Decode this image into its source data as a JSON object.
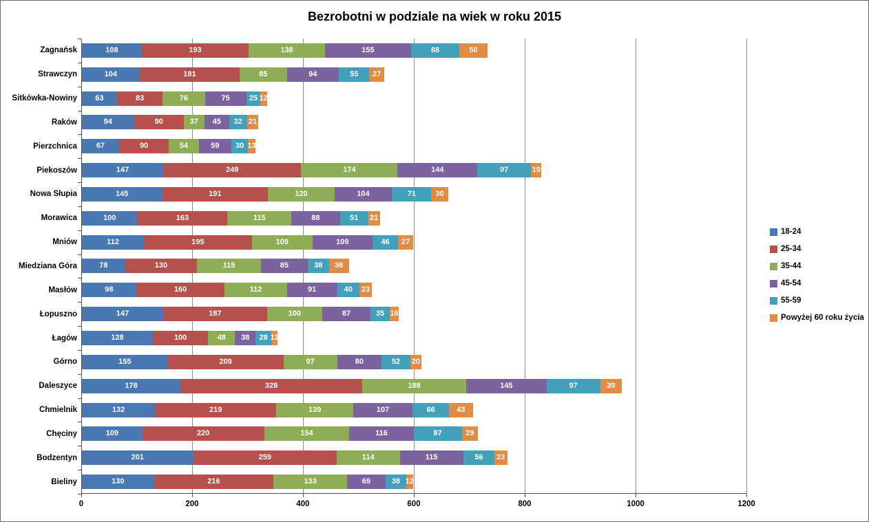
{
  "title": "Bezrobotni w podziale na wiek w roku 2015",
  "chart_data": {
    "type": "bar",
    "orientation": "horizontal",
    "stacked": true,
    "title": "Bezrobotni w podziale na wiek w roku 2015",
    "categories": [
      "Zagnańsk",
      "Strawczyn",
      "Sitkówka-Nowiny",
      "Raków",
      "Pierzchnica",
      "Piekoszów",
      "Nowa Słupia",
      "Morawica",
      "Mniów",
      "Miedziana Góra",
      "Masłów",
      "Łopuszno",
      "Łagów",
      "Górno",
      "Daleszyce",
      "Chmielnik",
      "Chęciny",
      "Bodzentyn",
      "Bieliny"
    ],
    "series": [
      {
        "name": "18-24",
        "color": "#4A78B2",
        "values": [
          108,
          104,
          63,
          94,
          67,
          147,
          145,
          100,
          112,
          78,
          98,
          147,
          128,
          155,
          178,
          132,
          109,
          201,
          130
        ]
      },
      {
        "name": "25-34",
        "color": "#B5504C",
        "values": [
          193,
          181,
          83,
          90,
          90,
          249,
          191,
          163,
          195,
          130,
          160,
          187,
          100,
          209,
          328,
          219,
          220,
          259,
          216
        ]
      },
      {
        "name": "35-44",
        "color": "#8FAD55",
        "values": [
          138,
          85,
          76,
          37,
          54,
          174,
          120,
          115,
          109,
          115,
          112,
          100,
          48,
          97,
          188,
          139,
          154,
          114,
          133
        ]
      },
      {
        "name": "45-54",
        "color": "#7B639F",
        "values": [
          155,
          94,
          75,
          45,
          59,
          144,
          104,
          88,
          109,
          85,
          91,
          87,
          38,
          80,
          145,
          107,
          116,
          115,
          69
        ]
      },
      {
        "name": "55-59",
        "color": "#42A0BB",
        "values": [
          88,
          55,
          25,
          32,
          30,
          97,
          71,
          51,
          46,
          38,
          40,
          35,
          28,
          52,
          97,
          66,
          87,
          56,
          38
        ]
      },
      {
        "name": "Powyżej 60 roku życia",
        "color": "#E08C45",
        "values": [
          50,
          27,
          12,
          21,
          13,
          19,
          30,
          21,
          27,
          36,
          23,
          16,
          11,
          20,
          39,
          43,
          29,
          23,
          12
        ]
      }
    ],
    "xlim": [
      0,
      1200
    ],
    "x_ticks": [
      0,
      200,
      400,
      600,
      800,
      1000,
      1200
    ],
    "grid": true,
    "legend_position": "right",
    "value_label_color": "#FFFFFF",
    "grid_color": "#8C8C8C",
    "axis_color": "#4D4D4D"
  }
}
